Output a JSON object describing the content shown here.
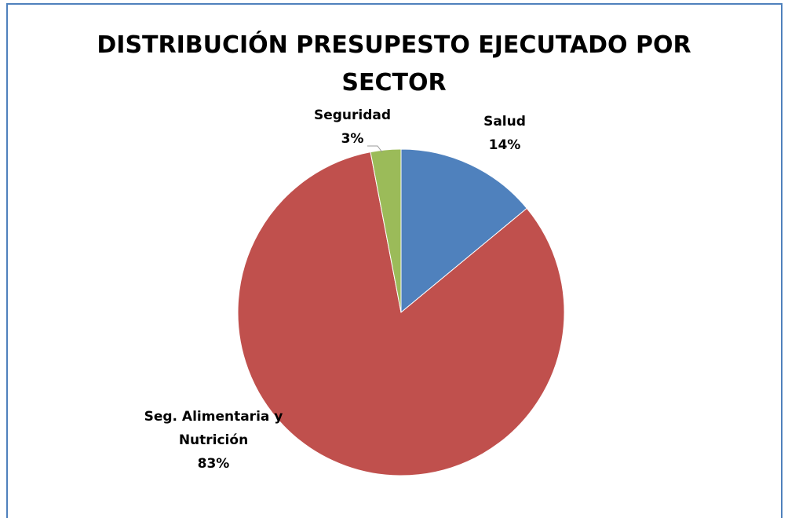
{
  "chart_data": {
    "type": "pie",
    "title": "DISTRIBUCIÓN PRESUPESTO EJECUTADO POR SECTOR",
    "categories": [
      "Salud",
      "Seg. Alimentaria y Nutrición",
      "Seguridad"
    ],
    "values": [
      14,
      83,
      3
    ],
    "value_labels": [
      "14%",
      "83%",
      "3%"
    ],
    "colors": [
      "#4f81bd",
      "#c0504d",
      "#9bbb59"
    ]
  }
}
